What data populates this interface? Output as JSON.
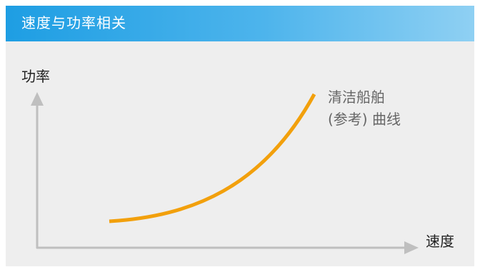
{
  "header": {
    "title": "速度与功率相关"
  },
  "diagram": {
    "y_axis_label": "功率",
    "x_axis_label": "速度",
    "curve": {
      "label_line1": "清洁船舶",
      "label_line2": "(参考) 曲线",
      "color": "#f2a00c"
    },
    "axis_color": "#bfbfbf"
  }
}
